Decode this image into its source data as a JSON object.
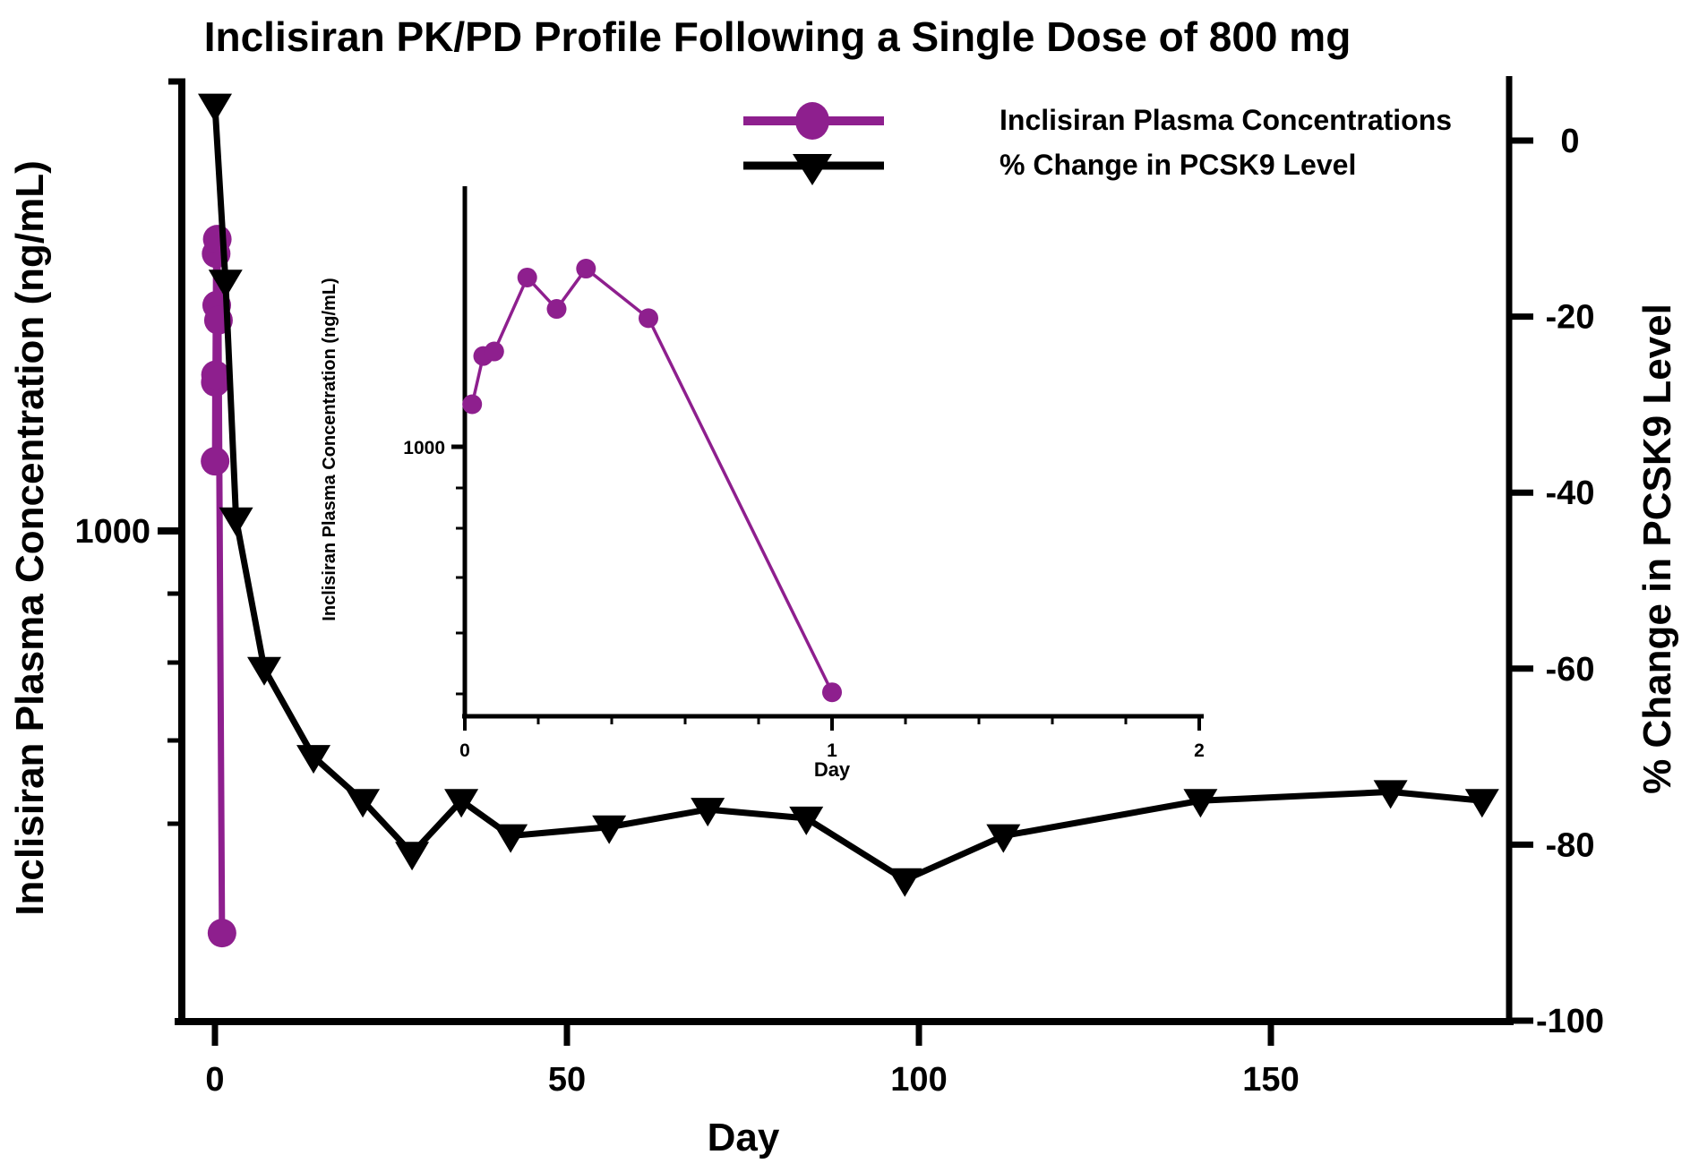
{
  "chart_data": {
    "type": "line",
    "title": "Inclisiran PK/PD Profile Following a Single Dose of 800 mg",
    "x_axis": {
      "label": "Day",
      "ticks": [
        0,
        50,
        100,
        150
      ],
      "range": [
        -6,
        185
      ],
      "grid": false
    },
    "left_y_axis": {
      "label": "Inclisiran Plasma Concentration (ng/mL)",
      "scale": "log",
      "labeled_ticks": [
        1000
      ],
      "range": [
        160,
        5500
      ]
    },
    "right_y_axis": {
      "label": "% Change in PCSK9 Level",
      "ticks": [
        0,
        -20,
        -40,
        -60,
        -80,
        -100
      ],
      "range": [
        -100,
        7
      ]
    },
    "legend_position": "top-right-inside",
    "series": [
      {
        "name": "Inclisiran Plasma Concentrations",
        "marker": "circle",
        "color": "#8e1f8e",
        "axis": "left",
        "days": [
          0.02,
          0.05,
          0.08,
          0.17,
          0.25,
          0.33,
          0.5,
          1
        ],
        "conc_ng_ml": [
          1300,
          1750,
          1800,
          2840,
          2340,
          3000,
          2210,
          220
        ]
      },
      {
        "name": "% Change in PCSK9 Level",
        "marker": "triangle-down",
        "color": "#000000",
        "axis": "right",
        "days": [
          0,
          1.5,
          3,
          7,
          14,
          21,
          28,
          35,
          42,
          56,
          70,
          84,
          98,
          112,
          140,
          167,
          180
        ],
        "pct_change": [
          4,
          -16,
          -43,
          -60,
          -70,
          -75,
          -81,
          -75,
          -79,
          -78,
          -76,
          -77,
          -84,
          -79,
          -75,
          -74,
          -75
        ]
      }
    ],
    "inset": {
      "x_axis": {
        "label": "Day",
        "ticks": [
          0,
          1,
          2
        ],
        "minor_tick_step": 0.2,
        "range": [
          0,
          2
        ]
      },
      "y_axis": {
        "label": "Inclisiran Plasma Concentration (ng/mL)",
        "scale": "log",
        "labeled_ticks": [
          1000
        ],
        "range": [
          190,
          5000
        ]
      },
      "note": "magnified view of the plasma-concentration series over days 0 to 2"
    }
  }
}
